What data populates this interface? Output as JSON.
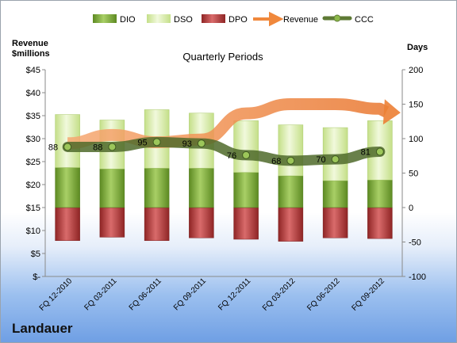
{
  "chart_data": {
    "type": "bar",
    "title": "Quarterly Periods",
    "company": "Landauer",
    "left_axis_title": [
      "Revenue",
      "$millions"
    ],
    "right_axis_title": "Days",
    "categories": [
      "FQ 12-2010",
      "FQ 03-2011",
      "FQ 06-2011",
      "FQ 09-2011",
      "FQ 12-2011",
      "FQ 03-2012",
      "FQ 06-2012",
      "FQ 09-2012"
    ],
    "legend": [
      "DIO",
      "DSO",
      "DPO",
      "Revenue",
      "CCC"
    ],
    "legend_position": "top",
    "right_axis": {
      "min": -100,
      "max": 200,
      "ticks": [
        "-100",
        "-50",
        "0",
        "50",
        "100",
        "150",
        "200"
      ]
    },
    "left_axis": {
      "min": 0,
      "max": 45,
      "ticks": [
        "$-",
        "$5",
        "$10",
        "$15",
        "$20",
        "$25",
        "$30",
        "$35",
        "$40",
        "$45"
      ]
    },
    "series": [
      {
        "name": "DIO",
        "axis": "days",
        "values": [
          58,
          56,
          57,
          57,
          51,
          46,
          39,
          40
        ]
      },
      {
        "name": "DSO",
        "axis": "days",
        "values": [
          77,
          71,
          85,
          80,
          75,
          74,
          77,
          86
        ]
      },
      {
        "name": "DPO",
        "axis": "days",
        "values": [
          -48,
          -43,
          -48,
          -44,
          -46,
          -49,
          -44,
          -45
        ]
      },
      {
        "name": "Revenue",
        "axis": "revenue",
        "values": [
          29.0,
          30.8,
          29.2,
          29.8,
          35.5,
          37.5,
          37.5,
          36.5
        ]
      },
      {
        "name": "CCC",
        "axis": "days",
        "values": [
          88,
          88,
          95,
          93,
          76,
          68,
          70,
          81
        ],
        "labels": [
          "88",
          "88",
          "95",
          "93",
          "76",
          "68",
          "70",
          "81"
        ]
      }
    ],
    "colors": {
      "DIO": "#7faa3a",
      "DSO": "#d9ecab",
      "DPO": "#b33a3a",
      "Revenue": "#f0883c",
      "CCC": "#5e7a35"
    },
    "grid": false
  }
}
